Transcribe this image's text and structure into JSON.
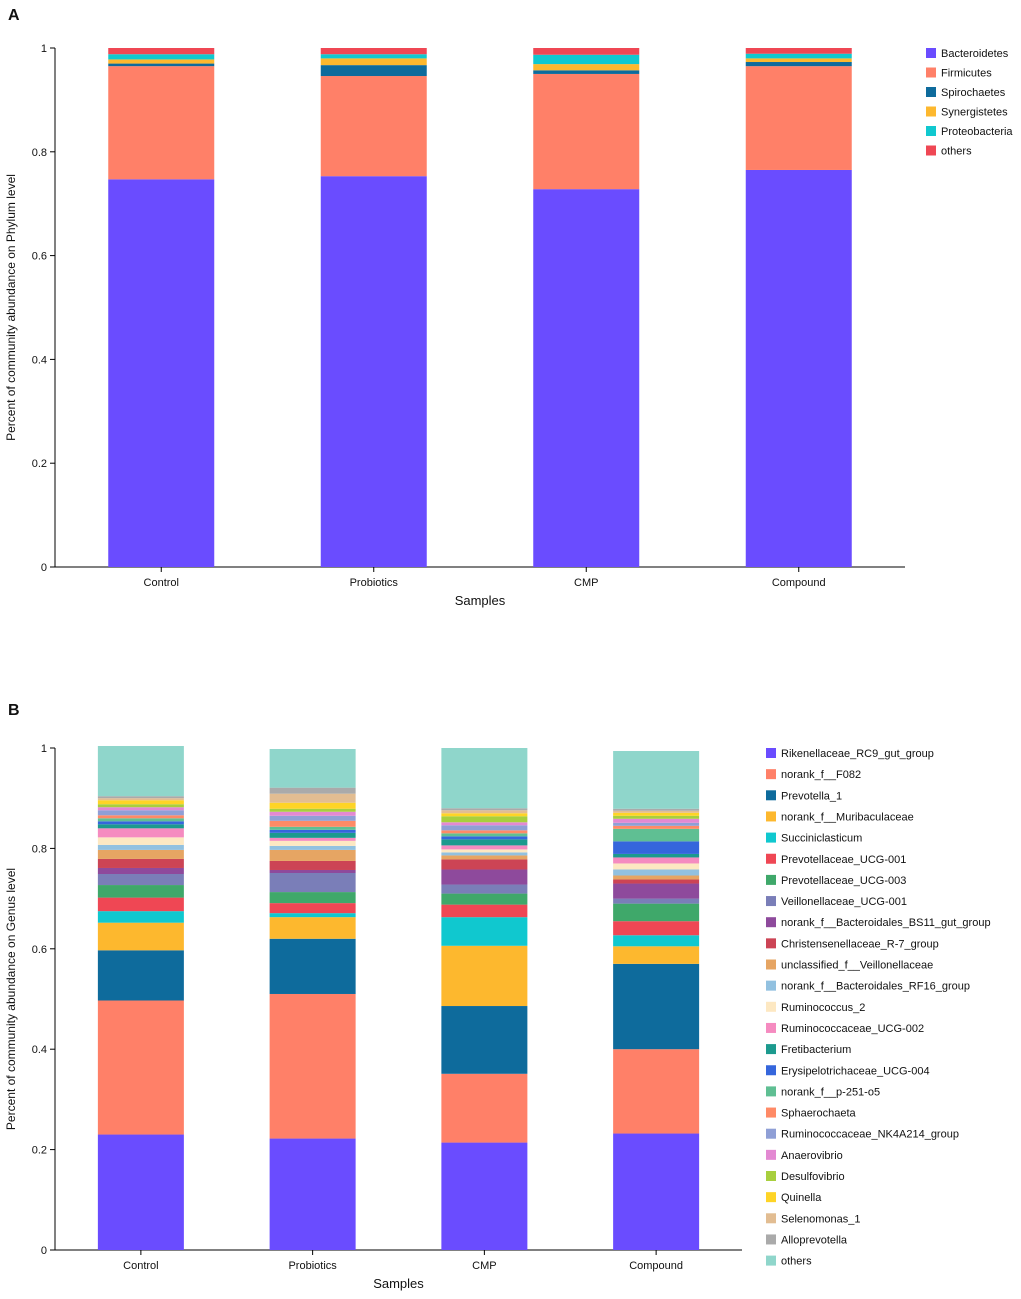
{
  "chart_data": [
    {
      "panel": "A",
      "type": "bar",
      "stacked": true,
      "categories": [
        "Control",
        "Probiotics",
        "CMP",
        "Compound"
      ],
      "xlabel": "Samples",
      "ylabel": "Percent of community abundance on Phylum level",
      "ylim": [
        0,
        1
      ],
      "yticks": [
        {
          "v": 0,
          "label": "0"
        },
        {
          "v": 0.2,
          "label": "0.2"
        },
        {
          "v": 0.4,
          "label": "0.4"
        },
        {
          "v": 0.6,
          "label": "0.6"
        },
        {
          "v": 0.8,
          "label": "0.8"
        },
        {
          "v": 1,
          "label": "1"
        }
      ],
      "legend_position": "right",
      "series": [
        {
          "name": "Bacteroidetes",
          "color": "#6a4cff",
          "values": [
            0.747,
            0.753,
            0.728,
            0.765
          ]
        },
        {
          "name": "Firmicutes",
          "color": "#ff8068",
          "values": [
            0.218,
            0.193,
            0.222,
            0.2
          ]
        },
        {
          "name": "Spirochaetes",
          "color": "#0e6b9c",
          "values": [
            0.005,
            0.021,
            0.007,
            0.008
          ]
        },
        {
          "name": "Synergistetes",
          "color": "#fdb82e",
          "values": [
            0.008,
            0.013,
            0.012,
            0.007
          ]
        },
        {
          "name": "Proteobacteria",
          "color": "#10c8cf",
          "values": [
            0.01,
            0.008,
            0.018,
            0.009
          ]
        },
        {
          "name": "others",
          "color": "#ef4754",
          "values": [
            0.012,
            0.012,
            0.013,
            0.011
          ]
        }
      ]
    },
    {
      "panel": "B",
      "type": "bar",
      "stacked": true,
      "categories": [
        "Control",
        "Probiotics",
        "CMP",
        "Compound"
      ],
      "xlabel": "Samples",
      "ylabel": "Percent of community abundance on Genus level",
      "ylim": [
        0,
        1
      ],
      "yticks": [
        {
          "v": 0,
          "label": "0"
        },
        {
          "v": 0.2,
          "label": "0.2"
        },
        {
          "v": 0.4,
          "label": "0.4"
        },
        {
          "v": 0.6,
          "label": "0.6"
        },
        {
          "v": 0.8,
          "label": "0.8"
        },
        {
          "v": 1,
          "label": "1"
        }
      ],
      "legend_position": "right",
      "series": [
        {
          "name": "Rikenellaceae_RC9_gut_group",
          "color": "#6a4cff",
          "values": [
            0.23,
            0.222,
            0.214,
            0.232
          ]
        },
        {
          "name": "norank_f__F082",
          "color": "#ff8068",
          "values": [
            0.267,
            0.288,
            0.137,
            0.168
          ]
        },
        {
          "name": "Prevotella_1",
          "color": "#0e6b9c",
          "values": [
            0.1,
            0.11,
            0.135,
            0.17
          ]
        },
        {
          "name": "norank_f__Muribaculaceae",
          "color": "#fdb82e",
          "values": [
            0.055,
            0.043,
            0.12,
            0.035
          ]
        },
        {
          "name": "Succiniclasticum",
          "color": "#10c8cf",
          "values": [
            0.023,
            0.008,
            0.057,
            0.022
          ]
        },
        {
          "name": "Prevotellaceae_UCG-001",
          "color": "#ef4754",
          "values": [
            0.027,
            0.02,
            0.025,
            0.028
          ]
        },
        {
          "name": "Prevotellaceae_UCG-003",
          "color": "#3fa86a",
          "values": [
            0.025,
            0.022,
            0.022,
            0.035
          ]
        },
        {
          "name": "Veillonellaceae_UCG-001",
          "color": "#7a7eb8",
          "values": [
            0.022,
            0.038,
            0.018,
            0.01
          ]
        },
        {
          "name": "norank_f__Bacteroidales_BS11_gut_group",
          "color": "#8e4a9c",
          "values": [
            0.012,
            0.006,
            0.03,
            0.03
          ]
        },
        {
          "name": "Christensenellaceae_R-7_group",
          "color": "#cc4455",
          "values": [
            0.018,
            0.018,
            0.02,
            0.008
          ]
        },
        {
          "name": "unclassified_f__Veillonellaceae",
          "color": "#e6a563",
          "values": [
            0.018,
            0.022,
            0.008,
            0.008
          ]
        },
        {
          "name": "norank_f__Bacteroidales_RF16_group",
          "color": "#92c1e0",
          "values": [
            0.01,
            0.008,
            0.006,
            0.012
          ]
        },
        {
          "name": "Ruminococcus_2",
          "color": "#fde8c2",
          "values": [
            0.015,
            0.01,
            0.006,
            0.012
          ]
        },
        {
          "name": "Ruminococcaceae_UCG-002",
          "color": "#f58bc0",
          "values": [
            0.018,
            0.006,
            0.008,
            0.012
          ]
        },
        {
          "name": "Fretibacterium",
          "color": "#1c9a8e",
          "values": [
            0.008,
            0.01,
            0.012,
            0.007
          ]
        },
        {
          "name": "Erysipelotrichaceae_UCG-004",
          "color": "#3566dc",
          "values": [
            0.006,
            0.006,
            0.006,
            0.025
          ]
        },
        {
          "name": "norank_f__p-251-o5",
          "color": "#5fbf93",
          "values": [
            0.006,
            0.006,
            0.006,
            0.025
          ]
        },
        {
          "name": "Sphaerochaeta",
          "color": "#ff8a66",
          "values": [
            0.006,
            0.012,
            0.006,
            0.006
          ]
        },
        {
          "name": "Ruminococcaceae_NK4A214_group",
          "color": "#8f9fd6",
          "values": [
            0.01,
            0.01,
            0.01,
            0.006
          ]
        },
        {
          "name": "Anaerovibrio",
          "color": "#e389d2",
          "values": [
            0.006,
            0.008,
            0.006,
            0.008
          ]
        },
        {
          "name": "Desulfovibrio",
          "color": "#a8cf3e",
          "values": [
            0.006,
            0.006,
            0.012,
            0.006
          ]
        },
        {
          "name": "Quinella",
          "color": "#fed426",
          "values": [
            0.008,
            0.012,
            0.006,
            0.006
          ]
        },
        {
          "name": "Selenomonas_1",
          "color": "#e2bd92",
          "values": [
            0.004,
            0.018,
            0.006,
            0.004
          ]
        },
        {
          "name": "Alloprevotella",
          "color": "#aaaaaa",
          "values": [
            0.004,
            0.012,
            0.004,
            0.004
          ]
        },
        {
          "name": "others",
          "color": "#8fd6cb",
          "values": [
            0.1,
            0.077,
            0.12,
            0.115
          ]
        }
      ]
    }
  ],
  "panels": {
    "A": {
      "label": "A"
    },
    "B": {
      "label": "B"
    }
  }
}
